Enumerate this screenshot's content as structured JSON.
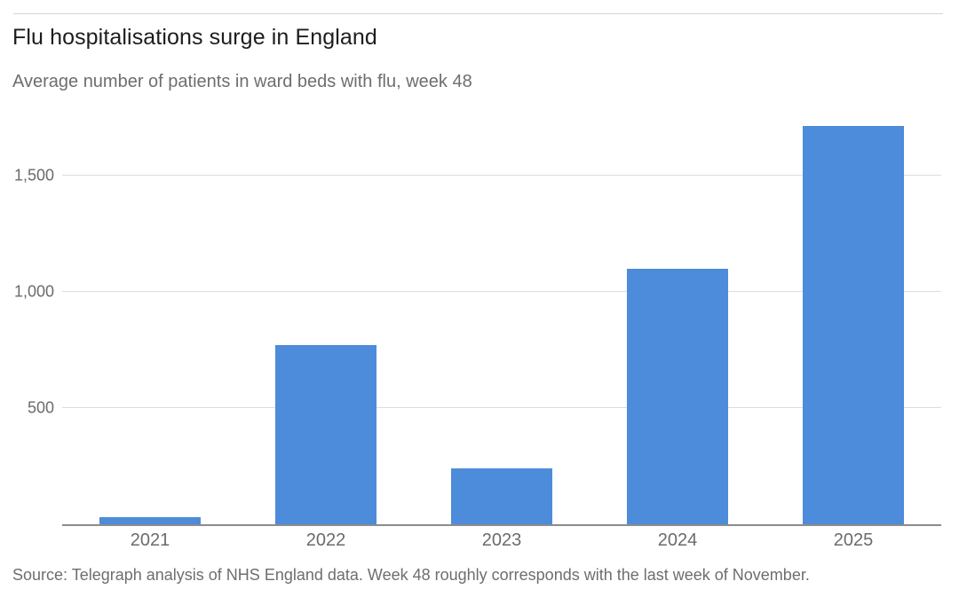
{
  "header": {
    "title": "Flu hospitalisations surge in England",
    "subtitle": "Average number of patients in ward beds with flu, week 48"
  },
  "footer": {
    "source": "Source: Telegraph analysis of NHS England data. Week 48 roughly corresponds with the last week of November."
  },
  "colors": {
    "bar": "#4d8cda",
    "gridline": "#dcdcdc",
    "axis_line": "#8c8c8c",
    "tick_label": "#6b6b6b",
    "title_text": "#1d1d1d",
    "muted_text": "#6e6e6e",
    "top_rule": "#d4d4d4"
  },
  "chart_data": {
    "type": "bar",
    "title": "Flu hospitalisations surge in England",
    "subtitle": "Average number of patients in ward beds with flu, week 48",
    "source": "Source: Telegraph analysis of NHS England data. Week 48 roughly corresponds with the last week of November.",
    "categories": [
      "2021",
      "2022",
      "2023",
      "2024",
      "2025"
    ],
    "values": [
      30,
      770,
      240,
      1100,
      1715
    ],
    "xlabel": "",
    "ylabel": "",
    "ylim": [
      0,
      1760
    ],
    "yticks": [
      {
        "value": 500,
        "label": "500"
      },
      {
        "value": 1000,
        "label": "1,000"
      },
      {
        "value": 1500,
        "label": "1,500"
      }
    ],
    "grid": "horizontal",
    "legend": "none",
    "bar_color": "#4d8cda"
  }
}
